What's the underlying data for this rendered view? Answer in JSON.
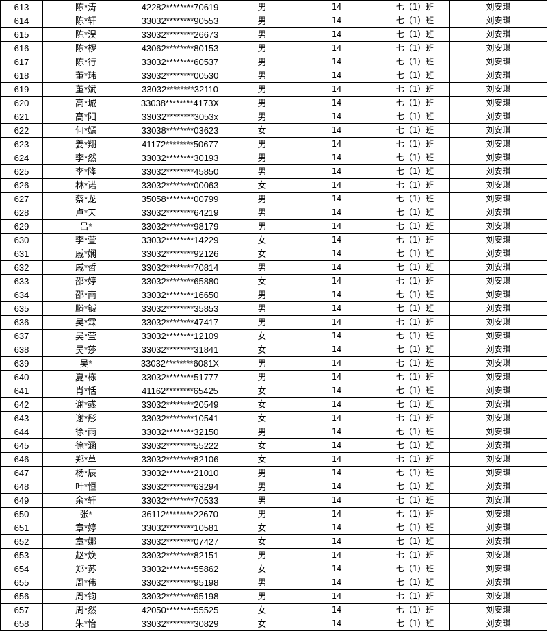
{
  "table": {
    "rows": [
      [
        "613",
        "陈*涛",
        "42282********70619",
        "男",
        "14",
        "七（1）班",
        "刘安琪"
      ],
      [
        "614",
        "陈*轩",
        "33032********90553",
        "男",
        "14",
        "七（1）班",
        "刘安琪"
      ],
      [
        "615",
        "陈*淏",
        "33032********26673",
        "男",
        "14",
        "七（1）班",
        "刘安琪"
      ],
      [
        "616",
        "陈*椤",
        "43062********80153",
        "男",
        "14",
        "七（1）班",
        "刘安琪"
      ],
      [
        "617",
        "陈*行",
        "33032********60537",
        "男",
        "14",
        "七（1）班",
        "刘安琪"
      ],
      [
        "618",
        "董*玮",
        "33032********00530",
        "男",
        "14",
        "七（1）班",
        "刘安琪"
      ],
      [
        "619",
        "董*斌",
        "33032********32110",
        "男",
        "14",
        "七（1）班",
        "刘安琪"
      ],
      [
        "620",
        "高*城",
        "33038********4173X",
        "男",
        "14",
        "七（1）班",
        "刘安琪"
      ],
      [
        "621",
        "高*阳",
        "33032********3053x",
        "男",
        "14",
        "七（1）班",
        "刘安琪"
      ],
      [
        "622",
        "何*嫣",
        "33038********03623",
        "女",
        "14",
        "七（1）班",
        "刘安琪"
      ],
      [
        "623",
        "姜*翔",
        "41172********50677",
        "男",
        "14",
        "七（1）班",
        "刘安琪"
      ],
      [
        "624",
        "李*然",
        "33032********30193",
        "男",
        "14",
        "七（1）班",
        "刘安琪"
      ],
      [
        "625",
        "李*隆",
        "33032********45850",
        "男",
        "14",
        "七（1）班",
        "刘安琪"
      ],
      [
        "626",
        "林*诺",
        "33032********00063",
        "女",
        "14",
        "七（1）班",
        "刘安琪"
      ],
      [
        "627",
        "蔡*龙",
        "35058********00799",
        "男",
        "14",
        "七（1）班",
        "刘安琪"
      ],
      [
        "628",
        "卢*天",
        "33032********64219",
        "男",
        "14",
        "七（1）班",
        "刘安琪"
      ],
      [
        "629",
        "吕*",
        "33032********98179",
        "男",
        "14",
        "七（1）班",
        "刘安琪"
      ],
      [
        "630",
        "李*萱",
        "33032********14229",
        "女",
        "14",
        "七（1）班",
        "刘安琪"
      ],
      [
        "631",
        "戚*娴",
        "33032********92126",
        "女",
        "14",
        "七（1）班",
        "刘安琪"
      ],
      [
        "632",
        "戚*哲",
        "33032********70814",
        "男",
        "14",
        "七（1）班",
        "刘安琪"
      ],
      [
        "633",
        "邵*婷",
        "33032********65880",
        "女",
        "14",
        "七（1）班",
        "刘安琪"
      ],
      [
        "634",
        "邵*南",
        "33032********16650",
        "男",
        "14",
        "七（1）班",
        "刘安琪"
      ],
      [
        "635",
        "滕*铖",
        "33032********35853",
        "男",
        "14",
        "七（1）班",
        "刘安琪"
      ],
      [
        "636",
        "吴*霖",
        "33032********47417",
        "男",
        "14",
        "七（1）班",
        "刘安琪"
      ],
      [
        "637",
        "吴*莹",
        "33032********12109",
        "女",
        "14",
        "七（1）班",
        "刘安琪"
      ],
      [
        "638",
        "吴*莎",
        "33032********31841",
        "女",
        "14",
        "七（1）班",
        "刘安琪"
      ],
      [
        "639",
        "吴*",
        "33032********6081X",
        "男",
        "14",
        "七（1）班",
        "刘安琪"
      ],
      [
        "640",
        "夏*栋",
        "33032********51777",
        "男",
        "14",
        "七（1）班",
        "刘安琪"
      ],
      [
        "641",
        "肖*恬",
        "41162********65425",
        "女",
        "14",
        "七（1）班",
        "刘安琪"
      ],
      [
        "642",
        "谢*彧",
        "33032********20549",
        "女",
        "14",
        "七（1）班",
        "刘安琪"
      ],
      [
        "643",
        "谢*彤",
        "33032********10541",
        "女",
        "14",
        "七（1）班",
        "刘安琪"
      ],
      [
        "644",
        "徐*雨",
        "33032********32150",
        "男",
        "14",
        "七（1）班",
        "刘安琪"
      ],
      [
        "645",
        "徐*涵",
        "33032********55222",
        "女",
        "14",
        "七（1）班",
        "刘安琪"
      ],
      [
        "646",
        "郑*草",
        "33032********82106",
        "女",
        "14",
        "七（1）班",
        "刘安琪"
      ],
      [
        "647",
        "杨*辰",
        "33032********21010",
        "男",
        "14",
        "七（1）班",
        "刘安琪"
      ],
      [
        "648",
        "叶*恒",
        "33032********63294",
        "男",
        "14",
        "七（1）班",
        "刘安琪"
      ],
      [
        "649",
        "余*轩",
        "33032********70533",
        "男",
        "14",
        "七（1）班",
        "刘安琪"
      ],
      [
        "650",
        "张*",
        "36112********22670",
        "男",
        "14",
        "七（1）班",
        "刘安琪"
      ],
      [
        "651",
        "章*婷",
        "33032********10581",
        "女",
        "14",
        "七（1）班",
        "刘安琪"
      ],
      [
        "652",
        "章*娜",
        "33032********07427",
        "女",
        "14",
        "七（1）班",
        "刘安琪"
      ],
      [
        "653",
        "赵*焕",
        "33032********82151",
        "男",
        "14",
        "七（1）班",
        "刘安琪"
      ],
      [
        "654",
        "郑*苏",
        "33032********55862",
        "女",
        "14",
        "七（1）班",
        "刘安琪"
      ],
      [
        "655",
        "周*伟",
        "33032********95198",
        "男",
        "14",
        "七（1）班",
        "刘安琪"
      ],
      [
        "656",
        "周*钧",
        "33032********65198",
        "男",
        "14",
        "七（1）班",
        "刘安琪"
      ],
      [
        "657",
        "周*然",
        "42050********55525",
        "女",
        "14",
        "七（1）班",
        "刘安琪"
      ],
      [
        "658",
        "朱*怡",
        "33032********30829",
        "女",
        "14",
        "七（1）班",
        "刘安琪"
      ]
    ]
  }
}
